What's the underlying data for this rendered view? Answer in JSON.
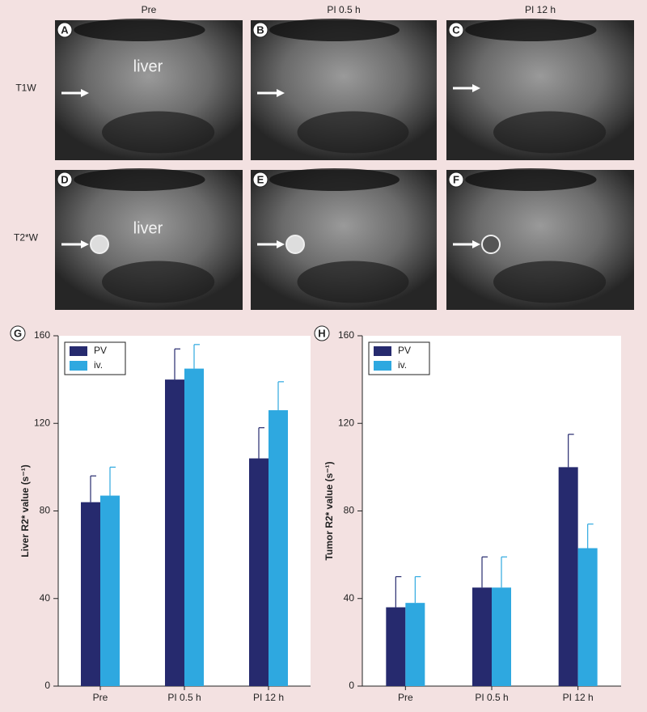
{
  "figure": {
    "columns": [
      "Pre",
      "PI 0.5 h",
      "PI 12 h"
    ],
    "rows": [
      "T1W",
      "T2*W"
    ],
    "panels": [
      {
        "letter": "A",
        "annotation": "liver"
      },
      {
        "letter": "B"
      },
      {
        "letter": "C"
      },
      {
        "letter": "D",
        "annotation": "liver"
      },
      {
        "letter": "E"
      },
      {
        "letter": "F"
      }
    ]
  },
  "chart_data": [
    {
      "type": "bar",
      "panel": "G",
      "y_label": "Liver R2* value (s⁻¹)",
      "categories": [
        "Pre",
        "PI 0.5 h",
        "PI 12 h"
      ],
      "series": [
        {
          "name": "PV",
          "color": "#262a6e",
          "values": [
            84,
            140,
            104
          ],
          "errors": [
            12,
            14,
            14
          ]
        },
        {
          "name": "iv.",
          "color": "#2ea8e0",
          "values": [
            87,
            145,
            126
          ],
          "errors": [
            13,
            11,
            13
          ]
        }
      ],
      "ylim": [
        0,
        160
      ],
      "yticks": [
        0,
        40,
        80,
        120,
        160
      ],
      "legend": "upper-left"
    },
    {
      "type": "bar",
      "panel": "H",
      "y_label": "Tumor R2* value (s⁻¹)",
      "categories": [
        "Pre",
        "PI 0.5 h",
        "PI 12 h"
      ],
      "series": [
        {
          "name": "PV",
          "color": "#262a6e",
          "values": [
            36,
            45,
            100
          ],
          "errors": [
            14,
            14,
            15
          ]
        },
        {
          "name": "iv.",
          "color": "#2ea8e0",
          "values": [
            38,
            45,
            63
          ],
          "errors": [
            12,
            14,
            11
          ]
        }
      ],
      "ylim": [
        0,
        160
      ],
      "yticks": [
        0,
        40,
        80,
        120,
        160
      ],
      "legend": "upper-left"
    }
  ]
}
